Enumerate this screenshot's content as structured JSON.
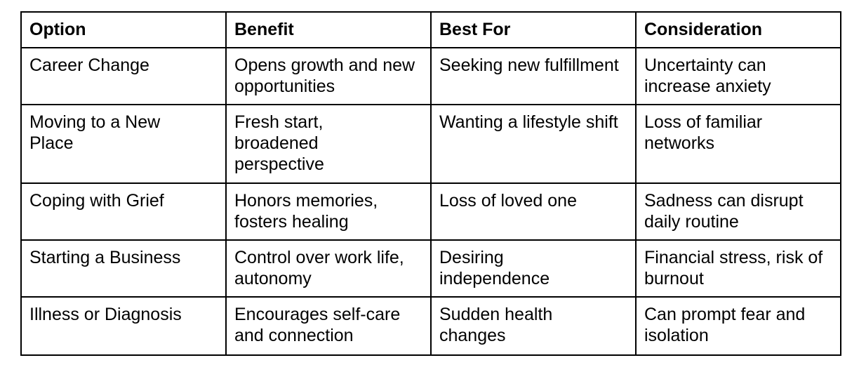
{
  "table": {
    "headers": [
      "Option",
      "Benefit",
      "Best For",
      "Consideration"
    ],
    "rows": [
      [
        "Career Change",
        "Opens growth and new opportunities",
        "Seeking new fulfillment",
        "Uncertainty can increase anxiety"
      ],
      [
        "Moving to a New Place",
        "Fresh start, broadened perspective",
        "Wanting a lifestyle shift",
        "Loss of familiar networks"
      ],
      [
        "Coping with Grief",
        "Honors memories, fosters healing",
        "Loss of loved one",
        "Sadness can disrupt daily routine"
      ],
      [
        "Starting a Business",
        "Control over work life, autonomy",
        "Desiring independence",
        "Financial stress, risk of burnout"
      ],
      [
        "Illness or Diagnosis",
        "Encourages self-care and connection",
        "Sudden health changes",
        "Can prompt fear and isolation"
      ]
    ]
  }
}
